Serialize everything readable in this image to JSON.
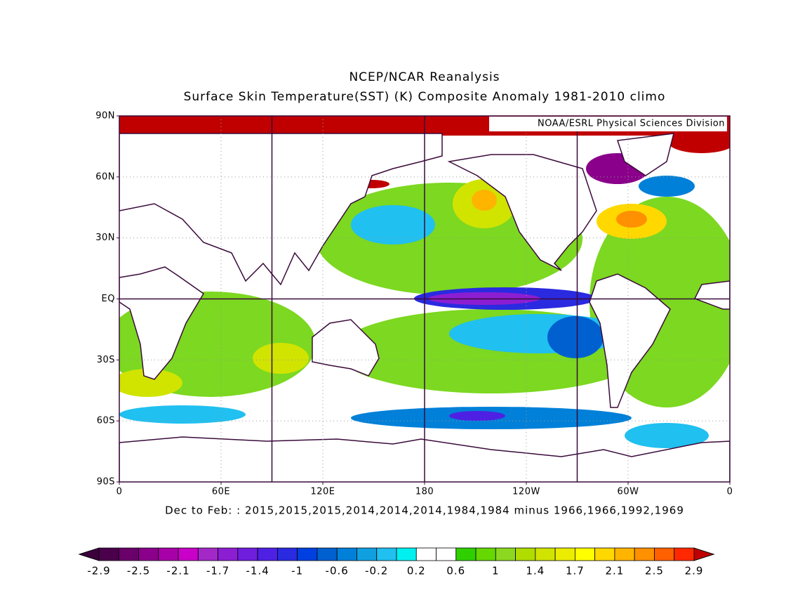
{
  "header": {
    "title": "NCEP/NCAR Reanalysis",
    "subtitle": "Surface Skin Temperature(SST) (K) Composite Anomaly 1981-2010 climo"
  },
  "credit": "NOAA/ESRL Physical Sciences Division",
  "map": {
    "lat_labels": [
      "90N",
      "60N",
      "30N",
      "EQ",
      "30S",
      "60S",
      "90S"
    ],
    "lon_labels": [
      "0",
      "60E",
      "120E",
      "180",
      "120W",
      "60W",
      "0"
    ]
  },
  "caption": "Dec to Feb: : 2015,2015,2015,2014,2014,2014,1984,1984 minus 1966,1966,1992,1969",
  "colorbar": {
    "ticks": [
      -2.9,
      -2.5,
      -2.1,
      -1.7,
      -1.4,
      -1,
      -0.6,
      -0.2,
      0.2,
      0.6,
      1,
      1.4,
      1.7,
      2.1,
      2.5,
      2.9
    ],
    "under_color": "#3c003c",
    "over_color": "#c00000",
    "colors": [
      "#4a004a",
      "#6a006a",
      "#8a008a",
      "#a800a8",
      "#c800c8",
      "#a428c8",
      "#8c1ed2",
      "#6e1edc",
      "#4e20e4",
      "#2a2ae0",
      "#0040e0",
      "#0060d0",
      "#0080d8",
      "#10a0e0",
      "#20c0f0",
      "#00f0f0",
      "#ffffff",
      "#ffffff",
      "#30d000",
      "#64d800",
      "#8cd820",
      "#b0dc00",
      "#d0e400",
      "#ecec00",
      "#ffff00",
      "#ffd800",
      "#ffb400",
      "#ff9000",
      "#ff6000",
      "#ff2800"
    ]
  }
}
